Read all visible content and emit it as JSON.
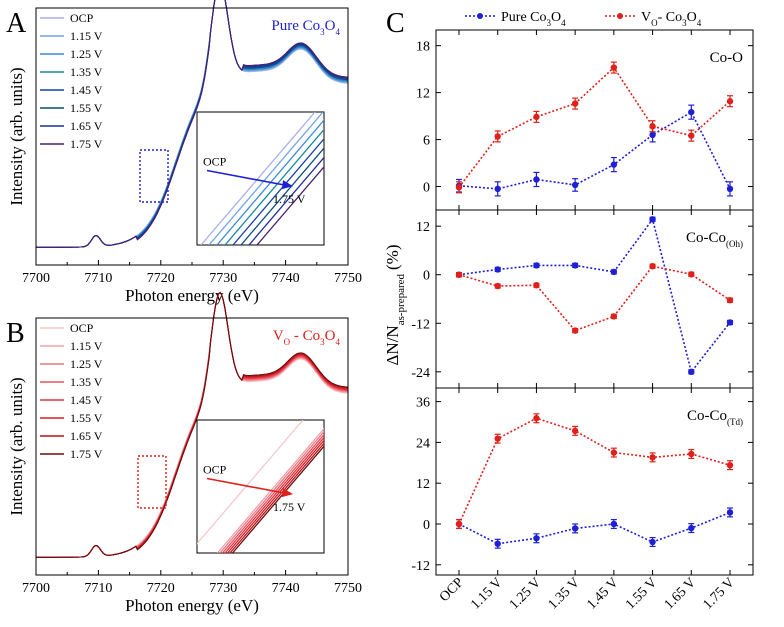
{
  "chart_data": [
    {
      "panel": "A",
      "type": "line",
      "title": "Pure Co3O4",
      "title_color": "#1f1fd6",
      "xlabel": "Photon energy (eV)",
      "ylabel": "Intensity (arb. units)",
      "xlim": [
        7700,
        7750
      ],
      "xticks": [
        "7700",
        "7710",
        "7720",
        "7730",
        "7740",
        "7750"
      ],
      "legend": [
        "OCP",
        "1.15 V",
        "1.25 V",
        "1.35 V",
        "1.45 V",
        "1.55 V",
        "1.65 V",
        "1.75 V"
      ],
      "colors": [
        "#aab0e8",
        "#6fa6e6",
        "#3f8ad8",
        "#178a9a",
        "#1a3fb0",
        "#0d4f7a",
        "#1f2f9c",
        "#4a1f70"
      ],
      "inset": {
        "start": "OCP",
        "end": "1.75 V"
      }
    },
    {
      "panel": "B",
      "type": "line",
      "title": "VO - Co3O4",
      "title_color": "#e0201a",
      "xlabel": "Photon energy (eV)",
      "ylabel": "Intensity (arb. units)",
      "xlim": [
        7700,
        7750
      ],
      "xticks": [
        "7700",
        "7710",
        "7720",
        "7730",
        "7740",
        "7750"
      ],
      "legend": [
        "OCP",
        "1.15 V",
        "1.25 V",
        "1.35 V",
        "1.45 V",
        "1.55 V",
        "1.65 V",
        "1.75 V"
      ],
      "colors": [
        "#f6c8cc",
        "#f2a0a8",
        "#ec7a84",
        "#e8505c",
        "#e4323c",
        "#d81e24",
        "#b8141a",
        "#6a0e10"
      ],
      "inset": {
        "start": "OCP",
        "end": "1.75 V"
      }
    },
    {
      "panel": "C",
      "type": "line",
      "ylabel": "ΔN/N",
      "ylabel_sub": "as-prepared",
      "ylabel_unit": "(%)",
      "categories": [
        "OCP",
        "1.15 V",
        "1.25 V",
        "1.35 V",
        "1.45 V",
        "1.55 V",
        "1.65 V",
        "1.75 V"
      ],
      "legend": [
        "Pure Co3O4",
        "VO- Co3O4"
      ],
      "series_colors": [
        "#1f1fd6",
        "#e0201a"
      ],
      "subplots": [
        {
          "label": "Co-O",
          "ylim": [
            -3,
            20
          ],
          "yticks": [
            "0",
            "6",
            "12",
            "18"
          ],
          "series": [
            {
              "name": "Pure Co3O4",
              "values": [
                0.1,
                -0.3,
                0.9,
                0.2,
                2.8,
                6.6,
                9.5,
                -0.3
              ],
              "err": [
                0.8,
                0.9,
                0.9,
                0.8,
                0.9,
                0.9,
                0.9,
                0.9
              ]
            },
            {
              "name": "VO- Co3O4",
              "values": [
                -0.1,
                6.4,
                8.9,
                10.6,
                15.2,
                7.7,
                6.5,
                10.9
              ],
              "err": [
                0.7,
                0.7,
                0.7,
                0.7,
                0.7,
                0.7,
                0.7,
                0.7
              ]
            }
          ]
        },
        {
          "label": "Co-Co",
          "label_sub": "(Oh)",
          "ylim": [
            -28,
            16
          ],
          "yticks": [
            "12",
            "0",
            "-12",
            "-24"
          ],
          "series": [
            {
              "name": "Pure Co3O4",
              "values": [
                0,
                1.3,
                2.3,
                2.3,
                0.7,
                13.7,
                -24,
                -11.8
              ],
              "err": [
                0.5,
                0.5,
                0.5,
                0.5,
                0.5,
                0.5,
                0.5,
                0.5
              ]
            },
            {
              "name": "VO- Co3O4",
              "values": [
                0,
                -2.8,
                -2.6,
                -13.8,
                -10.3,
                2.1,
                0.1,
                -6.3
              ],
              "err": [
                0.5,
                0.5,
                0.5,
                0.5,
                0.5,
                0.5,
                0.5,
                0.5
              ]
            }
          ]
        },
        {
          "label": "Co-Co",
          "label_sub": "(Td)",
          "ylim": [
            -15,
            40
          ],
          "yticks": [
            "36",
            "24",
            "12",
            "0",
            "-12"
          ],
          "series": [
            {
              "name": "Pure Co3O4",
              "values": [
                0,
                -5.8,
                -4.2,
                -1.3,
                0,
                -5.3,
                -1.2,
                3.4
              ],
              "err": [
                1.3,
                1.3,
                1.3,
                1.3,
                1.3,
                1.3,
                1.3,
                1.3
              ]
            },
            {
              "name": "VO- Co3O4",
              "values": [
                0,
                25.1,
                31.1,
                27.4,
                21,
                19.6,
                20.6,
                17.3
              ],
              "err": [
                1.3,
                1.3,
                1.3,
                1.3,
                1.3,
                1.3,
                1.3,
                1.3
              ]
            }
          ]
        }
      ]
    }
  ]
}
